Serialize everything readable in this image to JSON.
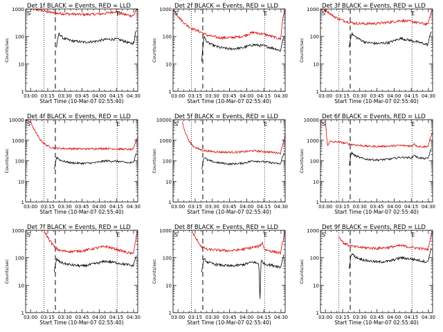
{
  "page": {
    "title_suffix": "BLACK = Events, RED = LLD",
    "xlabel": "Start Time (10-Mar-07 02:55:40)",
    "ylabel": "Counts/sec",
    "marker_s": "S",
    "marker_e": "E",
    "colors": {
      "events": "#000000",
      "lld": "#e00000",
      "axis": "#000000",
      "background": "#ffffff"
    }
  },
  "chart_data": [
    {
      "type": "line",
      "detector": "1f",
      "title": "Det 1f BLACK = Events, RED = LLD",
      "xlabel": "Start Time (10-Mar-07 02:55:40)",
      "ylabel": "Counts/sec",
      "xlim_minutes": [
        0,
        98
      ],
      "ylim": [
        1,
        1000
      ],
      "yscale": "log",
      "xticks_minutes": [
        4.33,
        19.33,
        34.33,
        49.33,
        64.33,
        79.33,
        94.33
      ],
      "xtick_labels": [
        "03:00",
        "03:15",
        "03:30",
        "03:45",
        "04:00",
        "04:15",
        "04:30"
      ],
      "yticks": [
        1,
        10,
        100,
        1000
      ],
      "ytick_labels": [
        "1",
        "10",
        "100",
        "1000"
      ],
      "dotted_lines_minutes": [
        16,
        80
      ],
      "dashed_lines_minutes": [
        26
      ],
      "series": [
        {
          "name": "LLD",
          "color": "red",
          "x": [
            4,
            10,
            20,
            26,
            36,
            50,
            66,
            78,
            86,
            92,
            95,
            96,
            98
          ],
          "y": [
            1000,
            950,
            780,
            700,
            670,
            630,
            660,
            800,
            640,
            570,
            600,
            900,
            1000
          ]
        },
        {
          "name": "Events",
          "color": "black",
          "x": [
            27,
            29,
            33,
            40,
            50,
            60,
            70,
            80,
            86,
            92,
            95,
            96,
            97
          ],
          "y": [
            40,
            130,
            85,
            70,
            62,
            65,
            78,
            80,
            68,
            55,
            60,
            150,
            170
          ]
        }
      ]
    },
    {
      "type": "line",
      "detector": "2f",
      "title": "Det 2f BLACK = Events, RED = LLD",
      "xlabel": "Start Time (10-Mar-07 02:55:40)",
      "ylabel": "Counts/sec",
      "xlim_minutes": [
        0,
        98
      ],
      "ylim": [
        1,
        1000
      ],
      "yscale": "log",
      "xticks_minutes": [
        4.33,
        19.33,
        34.33,
        49.33,
        64.33,
        79.33,
        94.33
      ],
      "xtick_labels": [
        "03:00",
        "03:15",
        "03:30",
        "03:45",
        "04:00",
        "04:15",
        "04:30"
      ],
      "yticks": [
        1,
        10,
        100,
        1000
      ],
      "ytick_labels": [
        "1",
        "10",
        "100",
        "1000"
      ],
      "dotted_lines_minutes": [
        16,
        80
      ],
      "dashed_lines_minutes": [
        26
      ],
      "series": [
        {
          "name": "LLD",
          "color": "red",
          "x": [
            0,
            5,
            10,
            15,
            20,
            25,
            30,
            40,
            50,
            60,
            70,
            80,
            90,
            94,
            96,
            98
          ],
          "y": [
            1000,
            500,
            300,
            210,
            170,
            140,
            110,
            90,
            90,
            100,
            140,
            120,
            90,
            80,
            500,
            1000
          ]
        },
        {
          "name": "Events",
          "color": "black",
          "x": [
            25,
            27,
            30,
            35,
            40,
            50,
            60,
            70,
            80,
            90,
            94,
            96,
            97
          ],
          "y": [
            12,
            100,
            60,
            48,
            40,
            35,
            38,
            50,
            45,
            35,
            30,
            80,
            100
          ]
        }
      ]
    },
    {
      "type": "line",
      "detector": "3f",
      "title": "Det 3f BLACK = Events, RED = LLD",
      "xlabel": "Start Time (10-Mar-07 02:55:40)",
      "ylabel": "Counts/sec",
      "xlim_minutes": [
        0,
        98
      ],
      "ylim": [
        1,
        1000
      ],
      "yscale": "log",
      "xticks_minutes": [
        4.33,
        19.33,
        34.33,
        49.33,
        64.33,
        79.33,
        94.33
      ],
      "xtick_labels": [
        "03:00",
        "03:15",
        "03:30",
        "03:45",
        "04:00",
        "04:15",
        "04:30"
      ],
      "yticks": [
        1,
        10,
        100,
        1000
      ],
      "ytick_labels": [
        "1",
        "10",
        "100",
        "1000"
      ],
      "dotted_lines_minutes": [
        16,
        80
      ],
      "dashed_lines_minutes": [
        26
      ],
      "series": [
        {
          "name": "LLD",
          "color": "red",
          "x": [
            0,
            5,
            10,
            15,
            20,
            25,
            30,
            40,
            50,
            60,
            70,
            80,
            90,
            94,
            96,
            98
          ],
          "y": [
            1000,
            900,
            600,
            450,
            380,
            330,
            300,
            290,
            300,
            330,
            380,
            350,
            290,
            280,
            600,
            1000
          ]
        },
        {
          "name": "Events",
          "color": "black",
          "x": [
            25,
            27,
            30,
            35,
            40,
            50,
            60,
            70,
            80,
            90,
            94,
            96,
            97
          ],
          "y": [
            40,
            130,
            100,
            75,
            60,
            55,
            60,
            85,
            70,
            55,
            50,
            130,
            150
          ]
        }
      ]
    },
    {
      "type": "line",
      "detector": "4f",
      "title": "Det 4f BLACK = Events, RED = LLD",
      "xlabel": "Start Time (10-Mar-07 02:55:40)",
      "ylabel": "Counts/sec",
      "xlim_minutes": [
        0,
        98
      ],
      "ylim": [
        1,
        10000
      ],
      "yscale": "log",
      "xticks_minutes": [
        4.33,
        19.33,
        34.33,
        49.33,
        64.33,
        79.33,
        94.33
      ],
      "xtick_labels": [
        "03:00",
        "03:15",
        "03:30",
        "03:45",
        "04:00",
        "04:15",
        "04:30"
      ],
      "yticks": [
        1,
        10,
        100,
        1000,
        10000
      ],
      "ytick_labels": [
        "1",
        "10",
        "100",
        "1000",
        "10000"
      ],
      "dotted_lines_minutes": [
        16,
        80
      ],
      "dashed_lines_minutes": [
        26
      ],
      "series": [
        {
          "name": "LLD",
          "color": "red",
          "x": [
            0,
            4,
            8,
            12,
            16,
            20,
            25,
            30,
            40,
            50,
            60,
            70,
            80,
            90,
            94,
            96,
            98
          ],
          "y": [
            10000,
            8000,
            3000,
            1200,
            700,
            500,
            420,
            400,
            390,
            380,
            390,
            400,
            380,
            360,
            350,
            800,
            1500
          ]
        },
        {
          "name": "Events",
          "color": "black",
          "x": [
            25,
            27,
            30,
            35,
            40,
            50,
            60,
            70,
            80,
            90,
            94,
            96,
            97
          ],
          "y": [
            40,
            150,
            110,
            90,
            80,
            75,
            80,
            100,
            95,
            80,
            80,
            200,
            250
          ]
        }
      ]
    },
    {
      "type": "line",
      "detector": "5f",
      "title": "Det 5f BLACK = Events, RED = LLD",
      "xlabel": "Start Time (10-Mar-07 02:55:40)",
      "ylabel": "Counts/sec",
      "xlim_minutes": [
        0,
        98
      ],
      "ylim": [
        1,
        10000
      ],
      "yscale": "log",
      "xticks_minutes": [
        4.33,
        19.33,
        34.33,
        49.33,
        64.33,
        79.33,
        94.33
      ],
      "xtick_labels": [
        "03:00",
        "03:15",
        "03:30",
        "03:45",
        "04:00",
        "04:15",
        "04:30"
      ],
      "yticks": [
        1,
        10,
        100,
        1000,
        10000
      ],
      "ytick_labels": [
        "1",
        "10",
        "100",
        "1000",
        "10000"
      ],
      "dotted_lines_minutes": [
        16,
        80
      ],
      "dashed_lines_minutes": [
        26
      ],
      "series": [
        {
          "name": "LLD",
          "color": "red",
          "x": [
            8,
            10,
            14,
            18,
            22,
            26,
            30,
            40,
            50,
            60,
            70,
            80,
            90,
            94,
            96,
            98
          ],
          "y": [
            8000,
            3000,
            900,
            500,
            380,
            320,
            300,
            270,
            260,
            270,
            310,
            280,
            250,
            240,
            700,
            1800
          ]
        },
        {
          "name": "Events",
          "color": "black",
          "x": [
            25,
            27,
            30,
            35,
            40,
            50,
            60,
            70,
            80,
            90,
            94,
            96,
            97
          ],
          "y": [
            40,
            150,
            110,
            90,
            80,
            70,
            75,
            100,
            90,
            75,
            70,
            180,
            250
          ]
        }
      ]
    },
    {
      "type": "line",
      "detector": "6f",
      "title": "Det 6f BLACK = Events, RED = LLD",
      "xlabel": "Start Time (10-Mar-07 02:55:40)",
      "ylabel": "Counts/sec",
      "xlim_minutes": [
        0,
        98
      ],
      "ylim": [
        1,
        10000
      ],
      "yscale": "log",
      "xticks_minutes": [
        4.33,
        19.33,
        34.33,
        49.33,
        64.33,
        79.33,
        94.33
      ],
      "xtick_labels": [
        "03:00",
        "03:15",
        "03:30",
        "03:45",
        "04:00",
        "04:15",
        "04:30"
      ],
      "yticks": [
        1,
        10,
        100,
        1000,
        10000
      ],
      "ytick_labels": [
        "1",
        "10",
        "100",
        "1000",
        "10000"
      ],
      "dotted_lines_minutes": [
        16,
        80
      ],
      "dashed_lines_minutes": [
        26
      ],
      "series": [
        {
          "name": "LLD",
          "color": "red",
          "x": [
            4,
            5,
            6,
            7,
            8,
            10,
            14,
            18,
            22,
            26,
            30,
            40,
            50,
            60,
            70,
            80,
            82,
            84,
            90,
            94,
            96,
            98
          ],
          "y": [
            10000,
            3000,
            500,
            700,
            900,
            800,
            850,
            800,
            700,
            650,
            600,
            520,
            500,
            520,
            560,
            520,
            700,
            520,
            480,
            520,
            1200,
            2500
          ]
        },
        {
          "name": "Events",
          "color": "black",
          "x": [
            25,
            27,
            30,
            35,
            40,
            50,
            60,
            70,
            80,
            82,
            84,
            90,
            94,
            96,
            97
          ],
          "y": [
            60,
            250,
            180,
            140,
            120,
            110,
            120,
            150,
            140,
            200,
            150,
            130,
            130,
            300,
            350
          ]
        }
      ]
    },
    {
      "type": "line",
      "detector": "7f",
      "title": "Det 7f BLACK = Events, RED = LLD",
      "xlabel": "Start Time (10-Mar-07 02:55:40)",
      "ylabel": "Counts/sec",
      "xlim_minutes": [
        0,
        98
      ],
      "ylim": [
        1,
        1000
      ],
      "yscale": "log",
      "xticks_minutes": [
        4.33,
        19.33,
        34.33,
        49.33,
        64.33,
        79.33,
        94.33
      ],
      "xtick_labels": [
        "03:00",
        "03:15",
        "03:30",
        "03:45",
        "04:00",
        "04:15",
        "04:30"
      ],
      "yticks": [
        1,
        10,
        100,
        1000
      ],
      "ytick_labels": [
        "1",
        "10",
        "100",
        "1000"
      ],
      "dotted_lines_minutes": [
        16,
        80
      ],
      "dashed_lines_minutes": [
        26
      ],
      "series": [
        {
          "name": "LLD",
          "color": "red",
          "x": [
            16,
            20,
            25,
            30,
            40,
            50,
            60,
            70,
            80,
            90,
            94,
            96,
            98
          ],
          "y": [
            1000,
            500,
            250,
            180,
            170,
            180,
            220,
            260,
            200,
            150,
            140,
            400,
            1000
          ]
        },
        {
          "name": "Events",
          "color": "black",
          "x": [
            25,
            27,
            30,
            35,
            40,
            50,
            60,
            70,
            80,
            90,
            94,
            96,
            97
          ],
          "y": [
            30,
            90,
            70,
            60,
            55,
            50,
            60,
            75,
            65,
            55,
            50,
            100,
            120
          ]
        }
      ]
    },
    {
      "type": "line",
      "detector": "8f",
      "title": "Det 8f BLACK = Events, RED = LLD",
      "xlabel": "Start Time (10-Mar-07 02:55:40)",
      "ylabel": "Counts/sec",
      "xlim_minutes": [
        0,
        98
      ],
      "ylim": [
        1,
        1000
      ],
      "yscale": "log",
      "xticks_minutes": [
        4.33,
        19.33,
        34.33,
        49.33,
        64.33,
        79.33,
        94.33
      ],
      "xtick_labels": [
        "03:00",
        "03:15",
        "03:30",
        "03:45",
        "04:00",
        "04:15",
        "04:30"
      ],
      "yticks": [
        1,
        10,
        100,
        1000
      ],
      "ytick_labels": [
        "1",
        "10",
        "100",
        "1000"
      ],
      "dotted_lines_minutes": [
        16,
        80
      ],
      "dashed_lines_minutes": [
        26
      ],
      "series": [
        {
          "name": "LLD",
          "color": "red",
          "x": [
            16,
            20,
            25,
            30,
            40,
            50,
            60,
            70,
            75,
            78,
            80,
            90,
            94,
            96,
            98
          ],
          "y": [
            1000,
            500,
            250,
            200,
            190,
            180,
            200,
            240,
            260,
            350,
            200,
            160,
            150,
            400,
            1000
          ]
        },
        {
          "name": "Events",
          "color": "black",
          "x": [
            25,
            27,
            30,
            35,
            40,
            50,
            60,
            70,
            75,
            76,
            77,
            80,
            90,
            94,
            96,
            97
          ],
          "y": [
            30,
            90,
            70,
            60,
            55,
            50,
            55,
            70,
            60,
            3,
            80,
            60,
            50,
            45,
            100,
            130
          ]
        }
      ]
    },
    {
      "type": "line",
      "detector": "9f",
      "title": "Det 9f BLACK = Events, RED = LLD",
      "xlabel": "Start Time (10-Mar-07 02:55:40)",
      "ylabel": "Counts/sec",
      "xlim_minutes": [
        0,
        98
      ],
      "ylim": [
        1,
        1000
      ],
      "yscale": "log",
      "xticks_minutes": [
        4.33,
        19.33,
        34.33,
        49.33,
        64.33,
        79.33,
        94.33
      ],
      "xtick_labels": [
        "03:00",
        "03:15",
        "03:30",
        "03:45",
        "04:00",
        "04:15",
        "04:30"
      ],
      "yticks": [
        1,
        10,
        100,
        1000
      ],
      "ytick_labels": [
        "1",
        "10",
        "100",
        "1000"
      ],
      "dotted_lines_minutes": [
        16,
        80
      ],
      "dashed_lines_minutes": [
        26
      ],
      "series": [
        {
          "name": "LLD",
          "color": "red",
          "x": [
            16,
            20,
            25,
            30,
            40,
            50,
            60,
            70,
            80,
            90,
            94,
            96,
            98
          ],
          "y": [
            600,
            350,
            280,
            250,
            230,
            220,
            240,
            280,
            240,
            210,
            200,
            500,
            1000
          ]
        },
        {
          "name": "Events",
          "color": "black",
          "x": [
            25,
            27,
            30,
            35,
            40,
            50,
            60,
            70,
            80,
            90,
            94,
            96,
            97
          ],
          "y": [
            40,
            150,
            110,
            90,
            80,
            70,
            75,
            100,
            90,
            75,
            70,
            180,
            220
          ]
        }
      ]
    }
  ]
}
